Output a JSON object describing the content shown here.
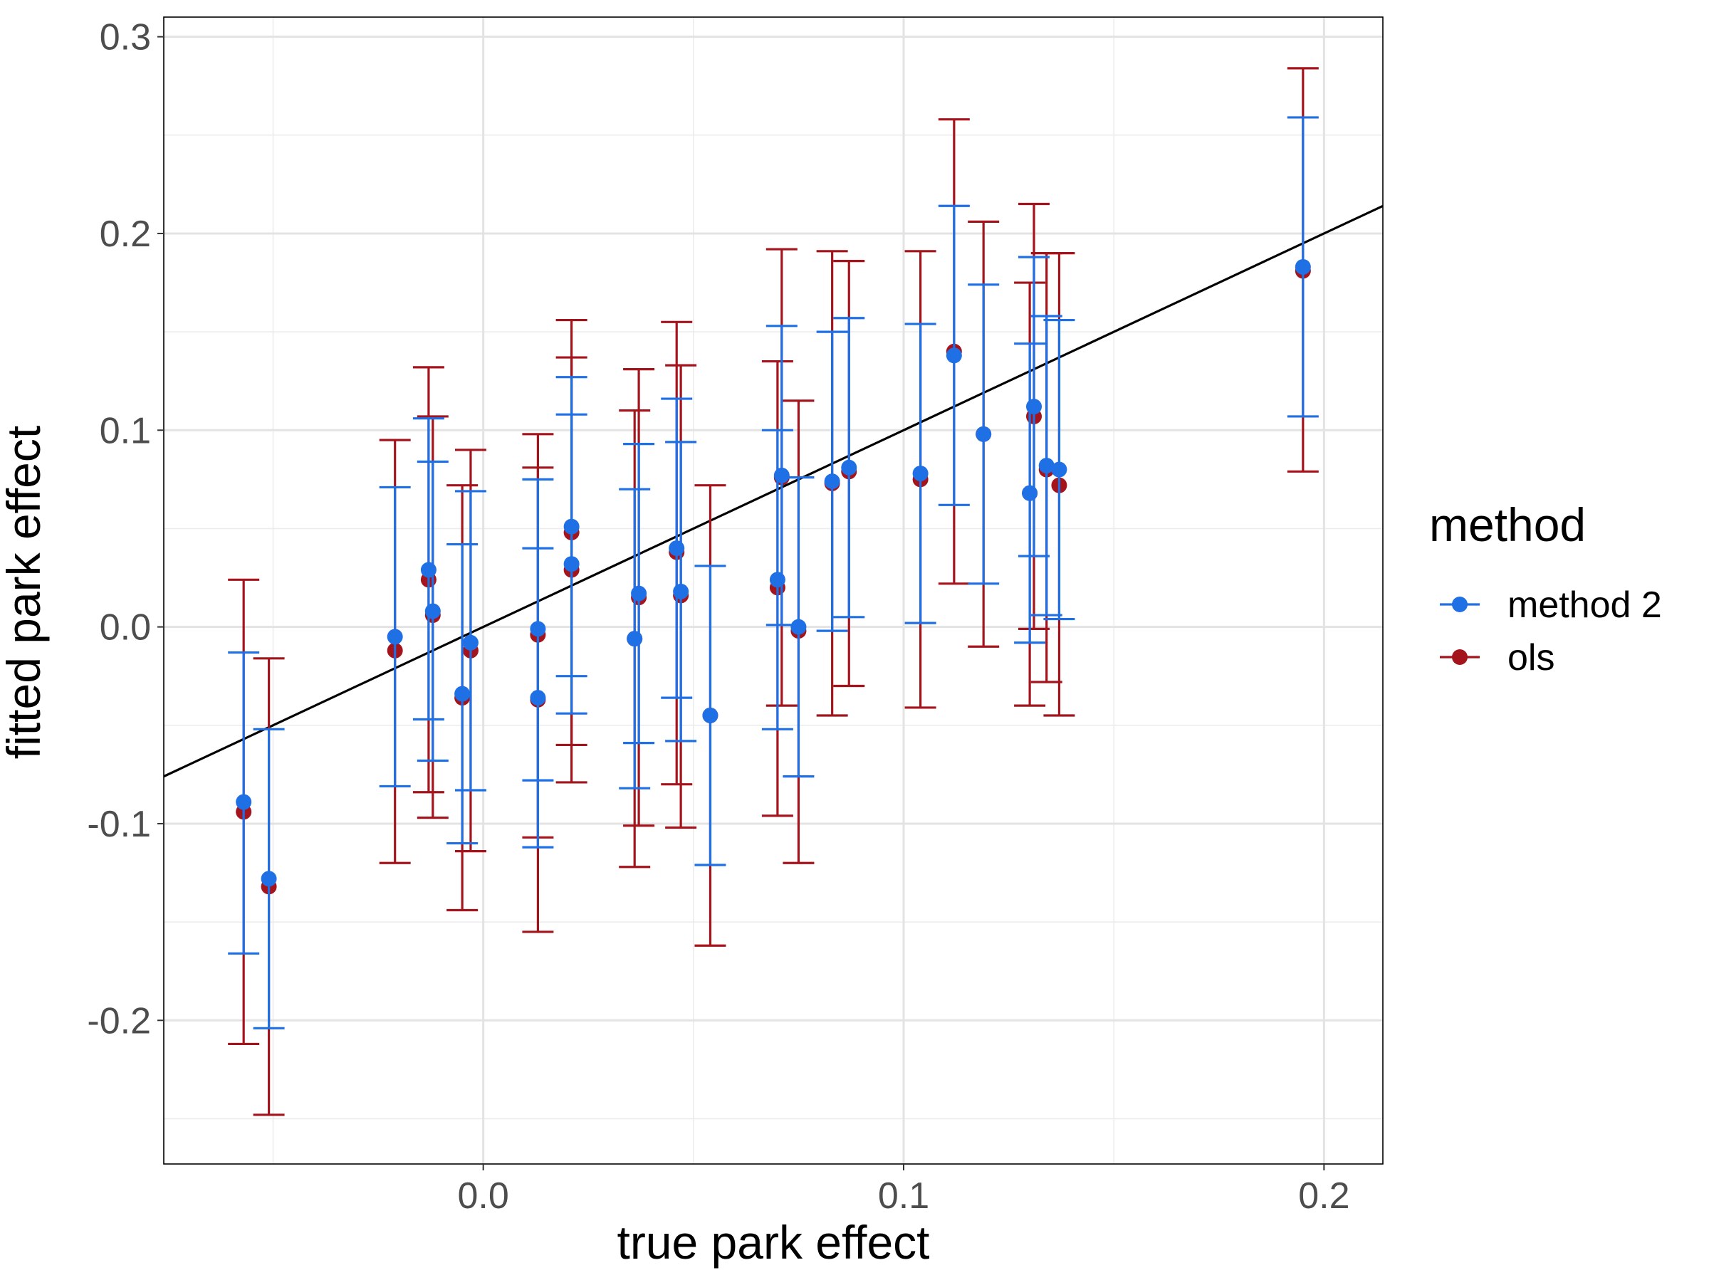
{
  "chart_data": {
    "type": "scatter",
    "title": "",
    "xlabel": "true park effect",
    "ylabel": "fitted park effect",
    "xlim": [
      -0.076,
      0.214
    ],
    "ylim": [
      -0.273,
      0.31
    ],
    "x_ticks": [
      0.0,
      0.1,
      0.2
    ],
    "x_tick_labels": [
      "0.0",
      "0.1",
      "0.2"
    ],
    "x_minor_ticks": [
      -0.05,
      0.05,
      0.15
    ],
    "y_ticks": [
      -0.2,
      -0.1,
      0.0,
      0.1,
      0.2,
      0.3
    ],
    "y_tick_labels": [
      "-0.2",
      "-0.1",
      "0.0",
      "0.1",
      "0.2",
      "0.3"
    ],
    "y_minor_ticks": [
      -0.25,
      -0.15,
      -0.05,
      0.05,
      0.15,
      0.25
    ],
    "grid": true,
    "legend": {
      "title": "method",
      "position": "right"
    },
    "reference_line": {
      "slope": 1,
      "intercept": 0
    },
    "series": [
      {
        "name": "method 2",
        "color": "#1f6fe5",
        "points": [
          {
            "x": -0.057,
            "y": -0.089,
            "lo": -0.166,
            "hi": -0.013
          },
          {
            "x": -0.051,
            "y": -0.128,
            "lo": -0.204,
            "hi": -0.052
          },
          {
            "x": -0.021,
            "y": -0.005,
            "lo": -0.081,
            "hi": 0.071
          },
          {
            "x": -0.013,
            "y": 0.029,
            "lo": -0.047,
            "hi": 0.106
          },
          {
            "x": -0.012,
            "y": 0.008,
            "lo": -0.068,
            "hi": 0.084
          },
          {
            "x": -0.005,
            "y": -0.034,
            "lo": -0.11,
            "hi": 0.042
          },
          {
            "x": -0.003,
            "y": -0.008,
            "lo": -0.083,
            "hi": 0.069
          },
          {
            "x": 0.013,
            "y": -0.036,
            "lo": -0.112,
            "hi": 0.04
          },
          {
            "x": 0.013,
            "y": -0.001,
            "lo": -0.078,
            "hi": 0.075
          },
          {
            "x": 0.021,
            "y": 0.051,
            "lo": -0.025,
            "hi": 0.127
          },
          {
            "x": 0.021,
            "y": 0.032,
            "lo": -0.044,
            "hi": 0.108
          },
          {
            "x": 0.036,
            "y": -0.006,
            "lo": -0.082,
            "hi": 0.07
          },
          {
            "x": 0.037,
            "y": 0.017,
            "lo": -0.059,
            "hi": 0.093
          },
          {
            "x": 0.046,
            "y": 0.04,
            "lo": -0.036,
            "hi": 0.116
          },
          {
            "x": 0.047,
            "y": 0.018,
            "lo": -0.058,
            "hi": 0.094
          },
          {
            "x": 0.054,
            "y": -0.045,
            "lo": -0.121,
            "hi": 0.031
          },
          {
            "x": 0.07,
            "y": 0.024,
            "lo": -0.052,
            "hi": 0.1
          },
          {
            "x": 0.071,
            "y": 0.077,
            "lo": 0.001,
            "hi": 0.153
          },
          {
            "x": 0.075,
            "y": 0.0,
            "lo": -0.076,
            "hi": 0.076
          },
          {
            "x": 0.083,
            "y": 0.074,
            "lo": -0.002,
            "hi": 0.15
          },
          {
            "x": 0.087,
            "y": 0.081,
            "lo": 0.005,
            "hi": 0.157
          },
          {
            "x": 0.104,
            "y": 0.078,
            "lo": 0.002,
            "hi": 0.154
          },
          {
            "x": 0.112,
            "y": 0.138,
            "lo": 0.062,
            "hi": 0.214
          },
          {
            "x": 0.119,
            "y": 0.098,
            "lo": 0.022,
            "hi": 0.174
          },
          {
            "x": 0.13,
            "y": 0.068,
            "lo": -0.008,
            "hi": 0.144
          },
          {
            "x": 0.131,
            "y": 0.112,
            "lo": 0.036,
            "hi": 0.188
          },
          {
            "x": 0.134,
            "y": 0.082,
            "lo": 0.006,
            "hi": 0.158
          },
          {
            "x": 0.137,
            "y": 0.08,
            "lo": 0.004,
            "hi": 0.156
          },
          {
            "x": 0.195,
            "y": 0.183,
            "lo": 0.107,
            "hi": 0.259
          }
        ]
      },
      {
        "name": "ols",
        "color": "#a4141c",
        "points": [
          {
            "x": -0.057,
            "y": -0.094,
            "lo": -0.212,
            "hi": 0.024
          },
          {
            "x": -0.051,
            "y": -0.132,
            "lo": -0.248,
            "hi": -0.016
          },
          {
            "x": -0.021,
            "y": -0.012,
            "lo": -0.12,
            "hi": 0.095
          },
          {
            "x": -0.013,
            "y": 0.024,
            "lo": -0.084,
            "hi": 0.132
          },
          {
            "x": -0.012,
            "y": 0.006,
            "lo": -0.097,
            "hi": 0.107
          },
          {
            "x": -0.005,
            "y": -0.036,
            "lo": -0.144,
            "hi": 0.072
          },
          {
            "x": -0.003,
            "y": -0.012,
            "lo": -0.114,
            "hi": 0.09
          },
          {
            "x": 0.013,
            "y": -0.037,
            "lo": -0.155,
            "hi": 0.081
          },
          {
            "x": 0.013,
            "y": -0.004,
            "lo": -0.107,
            "hi": 0.098
          },
          {
            "x": 0.021,
            "y": 0.048,
            "lo": -0.06,
            "hi": 0.156
          },
          {
            "x": 0.021,
            "y": 0.029,
            "lo": -0.079,
            "hi": 0.137
          },
          {
            "x": 0.036,
            "y": -0.006,
            "lo": -0.122,
            "hi": 0.11
          },
          {
            "x": 0.037,
            "y": 0.015,
            "lo": -0.101,
            "hi": 0.131
          },
          {
            "x": 0.046,
            "y": 0.038,
            "lo": -0.08,
            "hi": 0.155
          },
          {
            "x": 0.047,
            "y": 0.016,
            "lo": -0.102,
            "hi": 0.133
          },
          {
            "x": 0.054,
            "y": -0.045,
            "lo": -0.162,
            "hi": 0.072
          },
          {
            "x": 0.07,
            "y": 0.02,
            "lo": -0.096,
            "hi": 0.135
          },
          {
            "x": 0.071,
            "y": 0.076,
            "lo": -0.04,
            "hi": 0.192
          },
          {
            "x": 0.075,
            "y": -0.002,
            "lo": -0.12,
            "hi": 0.115
          },
          {
            "x": 0.083,
            "y": 0.073,
            "lo": -0.045,
            "hi": 0.191
          },
          {
            "x": 0.087,
            "y": 0.079,
            "lo": -0.03,
            "hi": 0.186
          },
          {
            "x": 0.104,
            "y": 0.075,
            "lo": -0.041,
            "hi": 0.191
          },
          {
            "x": 0.112,
            "y": 0.14,
            "lo": 0.022,
            "hi": 0.258
          },
          {
            "x": 0.119,
            "y": 0.098,
            "lo": -0.01,
            "hi": 0.206
          },
          {
            "x": 0.13,
            "y": 0.068,
            "lo": -0.04,
            "hi": 0.175
          },
          {
            "x": 0.131,
            "y": 0.107,
            "lo": -0.001,
            "hi": 0.215
          },
          {
            "x": 0.134,
            "y": 0.08,
            "lo": -0.028,
            "hi": 0.19
          },
          {
            "x": 0.137,
            "y": 0.072,
            "lo": -0.045,
            "hi": 0.19
          },
          {
            "x": 0.195,
            "y": 0.181,
            "lo": 0.079,
            "hi": 0.284
          }
        ]
      }
    ]
  }
}
